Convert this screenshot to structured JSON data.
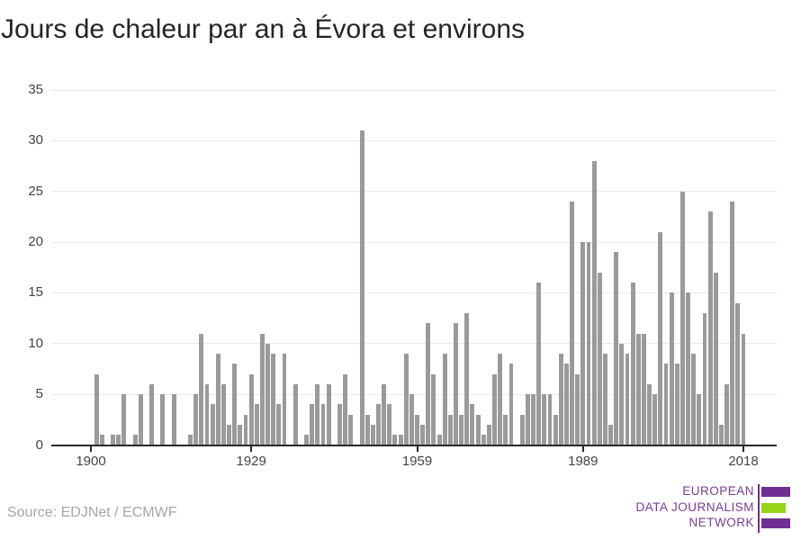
{
  "title": "Jours de chaleur par an à Évora et environs",
  "source": "Source: EDJNet / ECMWF",
  "logo": {
    "line1": "EUROPEAN",
    "line2": "DATA JOURNALISM",
    "line3": "NETWORK",
    "purple": "#6f2e91",
    "text_purple": "#7c3a97",
    "green": "#95d513"
  },
  "chart_data": {
    "type": "bar",
    "title": "Jours de chaleur par an à Évora et environs",
    "xlabel": "",
    "ylabel": "",
    "x_start": 1900,
    "x_end": 2018,
    "ylim": [
      0,
      35
    ],
    "yticks": [
      0,
      5,
      10,
      15,
      20,
      25,
      30,
      35
    ],
    "xticks": [
      1900,
      1929,
      1959,
      1989,
      2018
    ],
    "grid": true,
    "legend": false,
    "bar_color": "#9a9a9a",
    "values": [
      0,
      7,
      1,
      0,
      1,
      1,
      5,
      0,
      1,
      5,
      0,
      6,
      0,
      5,
      0,
      5,
      0,
      0,
      1,
      5,
      11,
      6,
      4,
      9,
      6,
      2,
      8,
      2,
      3,
      7,
      4,
      11,
      10,
      9,
      4,
      9,
      0,
      6,
      0,
      1,
      4,
      6,
      4,
      6,
      0,
      4,
      7,
      3,
      0,
      31,
      3,
      2,
      4,
      6,
      4,
      1,
      1,
      9,
      5,
      3,
      2,
      12,
      7,
      1,
      9,
      3,
      12,
      3,
      13,
      4,
      3,
      1,
      2,
      7,
      9,
      3,
      8,
      0,
      3,
      5,
      5,
      16,
      5,
      5,
      3,
      9,
      8,
      24,
      7,
      20,
      20,
      28,
      17,
      9,
      2,
      19,
      10,
      9,
      16,
      11,
      11,
      6,
      5,
      21,
      8,
      15,
      8,
      25,
      15,
      9,
      5,
      13,
      23,
      17,
      2,
      6,
      24,
      14,
      11
    ]
  }
}
